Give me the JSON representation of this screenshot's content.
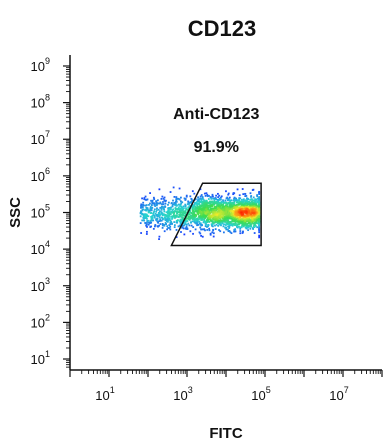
{
  "chart_data": {
    "type": "scatter",
    "title": "CD123",
    "xlabel": "FITC",
    "ylabel": "SSC",
    "x_scale": "log",
    "y_scale": "log",
    "x_exponent_range": [
      0,
      8
    ],
    "y_exponent_range": [
      0.7,
      9.3
    ],
    "x_tick_exponents": [
      1,
      3,
      5,
      7
    ],
    "y_tick_exponents": [
      1,
      2,
      3,
      4,
      5,
      6,
      7,
      8,
      9
    ],
    "log_base": "10",
    "grid": false,
    "colormap": "density (blue-cyan-green-yellow-red)",
    "gate": {
      "name": "Anti-CD123",
      "percent": "91.9%",
      "vertices_log10": [
        [
          3.4,
          5.8
        ],
        [
          4.9,
          5.8
        ],
        [
          4.9,
          4.1
        ],
        [
          2.6,
          4.1
        ]
      ]
    },
    "population": {
      "x_log10_range": [
        1.8,
        4.8
      ],
      "y_log10_center": 5.0,
      "hotspots_x_log10": [
        3.7,
        4.6
      ]
    }
  },
  "colors": {
    "axis": "#111111",
    "gate": "#111111",
    "density_low": "#1a3cff",
    "density_mid": "#28d2d2",
    "density_high": "#ff2000"
  }
}
